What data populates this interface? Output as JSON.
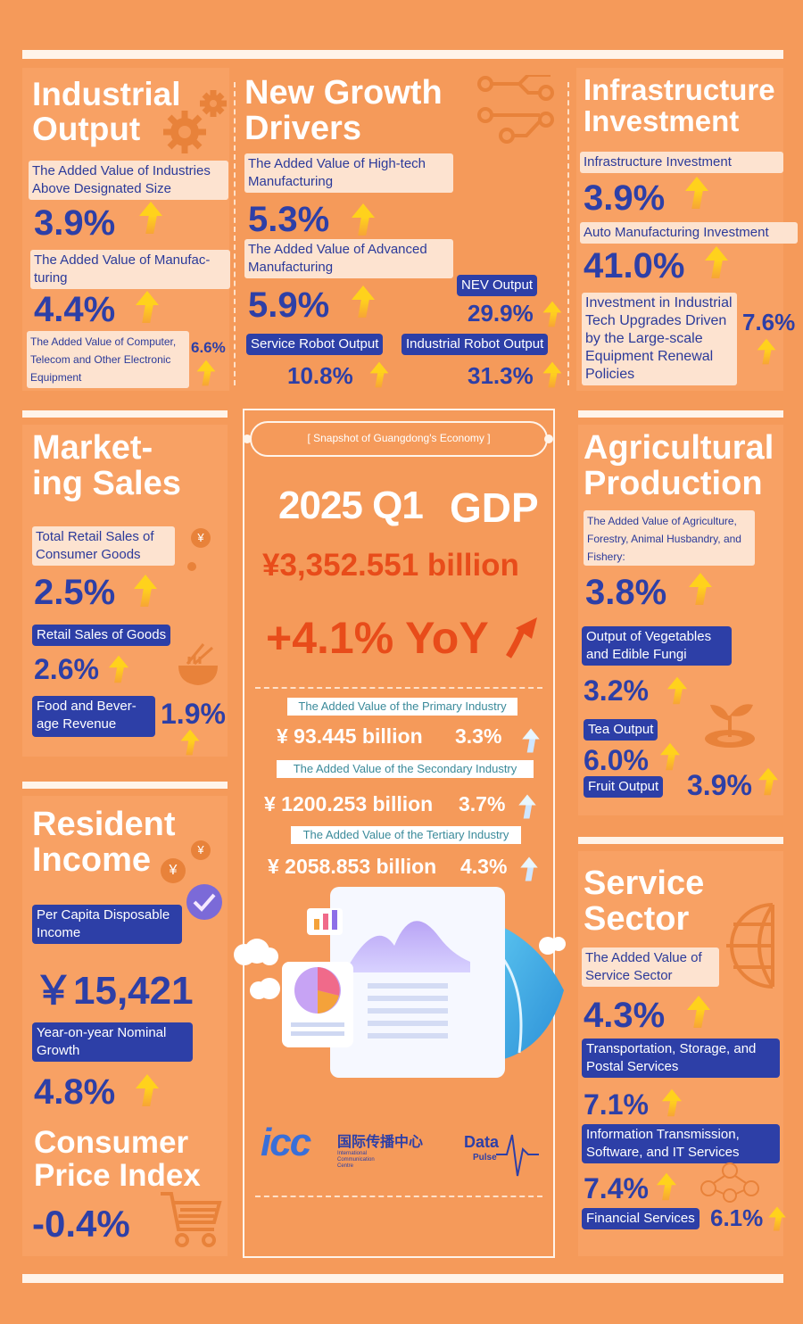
{
  "colors": {
    "background": "#f59a5a",
    "accent_blue": "#2d3fa7",
    "highlight_red": "#e84c1a",
    "arrow_yellow": "#ffd21c"
  },
  "industrial": {
    "title_line1": "Industrial",
    "title_line2": "Output",
    "icon": "gear-icon",
    "items": [
      {
        "label": "The Added Value of Industries Above Designated Size",
        "value": "3.9%"
      },
      {
        "label": "The Added Value of Manufac-turing",
        "value": "4.4%"
      },
      {
        "label": "The Added Value of Computer, Telecom and Other Electronic Equipment",
        "value": "6.6%"
      }
    ]
  },
  "growth": {
    "title_line1": "New Growth",
    "title_line2": "Drivers",
    "icon": "circuit-icon",
    "items": [
      {
        "label": "The Added Value of High-tech Manufacturing",
        "value": "5.3%"
      },
      {
        "label": "The Added Value of Advanced Manufacturing",
        "value": "5.9%"
      },
      {
        "label": "NEV Output",
        "value": "29.9%"
      },
      {
        "label": "Service Robot Output",
        "value": "10.8%"
      },
      {
        "label": "Industrial Robot Output",
        "value": "31.3%"
      }
    ]
  },
  "infra": {
    "title_line1": "Infrastructure",
    "title_line2": "Investment",
    "items": [
      {
        "label": "Infrastructure Investment",
        "value": "3.9%"
      },
      {
        "label": "Auto Manufacturing Investment",
        "value": "41.0%"
      },
      {
        "label": "Investment in Industrial Tech Upgrades Driven by the Large-scale Equipment Renewal Policies",
        "value": "7.6%"
      }
    ]
  },
  "marketing": {
    "title_line1": "Market-",
    "title_line2": "ing Sales",
    "items": [
      {
        "label": "Total Retail Sales of Consumer Goods",
        "value": "2.5%"
      },
      {
        "label": "Retail Sales of Goods",
        "value": "2.6%"
      },
      {
        "label": "Food and Bever-age Revenue",
        "value": "1.9%"
      }
    ]
  },
  "center": {
    "snapshot": "[ Snapshot of Guangdong's Economy ]",
    "period": "2025 Q1",
    "gdp_label": "GDP",
    "gdp_value": "¥3,352.551 billion",
    "gdp_growth": "+4.1% YoY",
    "industries": [
      {
        "label": "The Added Value of the Primary Industry",
        "amount": "¥ 93.445 billion",
        "growth": "3.3%"
      },
      {
        "label": "The Added Value of the Secondary Industry",
        "amount": "¥ 1200.253 billion",
        "growth": "3.7%"
      },
      {
        "label": "The Added Value of the Tertiary Industry",
        "amount": "¥ 2058.853 billion",
        "growth": "4.3%"
      }
    ],
    "logo_icc": "icc",
    "logo_cn": "国际传播中心",
    "logo_en1": "International",
    "logo_en2": "Communication",
    "logo_en3": "Centre",
    "logo_data": "Data",
    "logo_pulse": "Pulse"
  },
  "agri": {
    "title_line1": "Agricultural",
    "title_line2": "Production",
    "items": [
      {
        "label": "The Added Value of Agriculture, Forestry, Animal Husbandry, and Fishery:",
        "value": "3.8%"
      },
      {
        "label": "Output of Vegetables and Edible Fungi",
        "value": "3.2%"
      },
      {
        "label": "Tea Output",
        "value": "6.0%"
      },
      {
        "label": "Fruit Output",
        "value": "3.9%"
      }
    ]
  },
  "income": {
    "title_line1": "Resident",
    "title_line2": "Income",
    "items": [
      {
        "label": "Per Capita Disposable Income",
        "value": "￥15,421"
      },
      {
        "label": "Year-on-year Nominal Growth",
        "value": "4.8%"
      }
    ],
    "cpi_line1": "Consumer",
    "cpi_line2": "Price Index",
    "cpi_value": "-0.4%"
  },
  "service": {
    "title_line1": "Service",
    "title_line2": "Sector",
    "items": [
      {
        "label": "The Added Value of Service Sector",
        "value": "4.3%"
      },
      {
        "label": "Transportation, Storage, and Postal Services",
        "value": "7.1%"
      },
      {
        "label": "Information Transmission, Software, and IT Services",
        "value": "7.4%"
      },
      {
        "label": "Financial Services",
        "value": "6.1%"
      }
    ]
  },
  "icons": {
    "yen": "¥"
  }
}
